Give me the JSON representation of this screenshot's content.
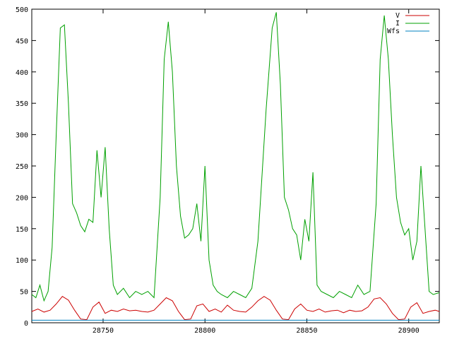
{
  "chart_data": {
    "type": "line",
    "title": "",
    "xlabel": "",
    "ylabel": "",
    "xlim": [
      28715,
      28915
    ],
    "ylim": [
      0,
      500
    ],
    "xticks": [
      28750,
      28800,
      28850,
      28900
    ],
    "yticks": [
      0,
      50,
      100,
      150,
      200,
      250,
      300,
      350,
      400,
      450,
      500
    ],
    "grid": false,
    "legend_position": "top-right",
    "series": [
      {
        "name": "V",
        "color": "#cc0000",
        "x": [
          28715,
          28718,
          28721,
          28724,
          28727,
          28730,
          28733,
          28736,
          28739,
          28742,
          28745,
          28748,
          28751,
          28754,
          28757,
          28760,
          28763,
          28766,
          28769,
          28772,
          28775,
          28778,
          28781,
          28784,
          28787,
          28790,
          28793,
          28796,
          28799,
          28802,
          28805,
          28808,
          28811,
          28814,
          28817,
          28820,
          28823,
          28826,
          28829,
          28832,
          28835,
          28838,
          28841,
          28844,
          28847,
          28850,
          28853,
          28856,
          28859,
          28862,
          28865,
          28868,
          28871,
          28874,
          28877,
          28880,
          28883,
          28886,
          28889,
          28892,
          28895,
          28898,
          28901,
          28904,
          28907,
          28910,
          28913,
          28915
        ],
        "values": [
          18,
          22,
          17,
          20,
          30,
          42,
          36,
          20,
          6,
          5,
          25,
          33,
          15,
          20,
          18,
          22,
          19,
          20,
          18,
          17,
          20,
          30,
          40,
          35,
          18,
          5,
          6,
          27,
          30,
          18,
          22,
          17,
          28,
          20,
          18,
          17,
          25,
          35,
          42,
          36,
          20,
          6,
          5,
          22,
          30,
          20,
          18,
          22,
          17,
          19,
          20,
          16,
          20,
          18,
          19,
          25,
          38,
          40,
          30,
          15,
          5,
          6,
          25,
          32,
          15,
          18,
          20,
          18
        ]
      },
      {
        "name": "I",
        "color": "#00a000",
        "x": [
          28715,
          28717,
          28719,
          28721,
          28723,
          28725,
          28727,
          28729,
          28731,
          28733,
          28735,
          28737,
          28739,
          28741,
          28743,
          28745,
          28747,
          28749,
          28751,
          28753,
          28755,
          28757,
          28760,
          28763,
          28766,
          28769,
          28772,
          28775,
          28778,
          28780,
          28782,
          28784,
          28786,
          28788,
          28790,
          28792,
          28794,
          28796,
          28798,
          28800,
          28802,
          28804,
          28806,
          28808,
          28811,
          28814,
          28817,
          28820,
          28823,
          28826,
          28830,
          28833,
          28835,
          28837,
          28839,
          28841,
          28843,
          28845,
          28847,
          28849,
          28851,
          28853,
          28855,
          28857,
          28860,
          28863,
          28866,
          28869,
          28872,
          28875,
          28878,
          28881,
          28884,
          28886,
          28888,
          28890,
          28892,
          28894,
          28896,
          28898,
          28900,
          28902,
          28904,
          28906,
          28908,
          28910,
          28912,
          28915
        ],
        "values": [
          45,
          40,
          60,
          35,
          50,
          120,
          300,
          470,
          475,
          350,
          190,
          175,
          155,
          145,
          165,
          160,
          275,
          200,
          280,
          150,
          60,
          45,
          55,
          40,
          50,
          45,
          50,
          40,
          200,
          420,
          480,
          400,
          250,
          170,
          135,
          140,
          150,
          190,
          130,
          250,
          100,
          60,
          50,
          45,
          40,
          50,
          45,
          40,
          55,
          130,
          340,
          470,
          495,
          380,
          200,
          180,
          150,
          140,
          100,
          165,
          130,
          240,
          60,
          50,
          45,
          40,
          50,
          45,
          40,
          60,
          45,
          50,
          190,
          420,
          490,
          420,
          300,
          200,
          160,
          140,
          150,
          100,
          130,
          250,
          150,
          50,
          45,
          48
        ]
      },
      {
        "name": "Wfs",
        "color": "#0080c0",
        "x": [
          28715,
          28915
        ],
        "values": [
          4,
          4
        ]
      }
    ]
  }
}
